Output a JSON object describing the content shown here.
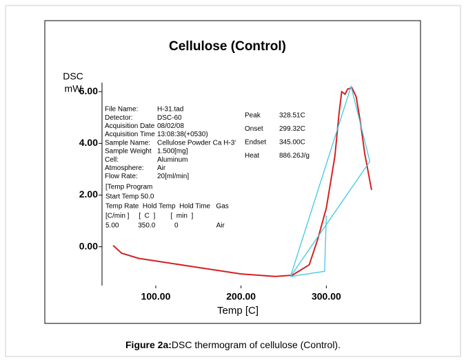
{
  "chart_data": {
    "type": "line",
    "title": "Cellulose (Control)",
    "ylabel": [
      "DSC",
      "mW"
    ],
    "xlabel": "Temp [C]",
    "xlim": [
      37,
      370
    ],
    "ylim": [
      -1.5,
      6.35
    ],
    "xticks": [
      {
        "value": 100,
        "label": "100.00"
      },
      {
        "value": 200,
        "label": "200.00"
      },
      {
        "value": 300,
        "label": "300.00"
      }
    ],
    "yticks": [
      {
        "value": 0,
        "label": "0.00"
      },
      {
        "value": 2,
        "label": "2.00"
      },
      {
        "value": 4,
        "label": "4.00"
      },
      {
        "value": 6,
        "label": "6.00"
      }
    ],
    "series": [
      {
        "color": "#d42020",
        "x": [
          50,
          60,
          80,
          100,
          150,
          200,
          240,
          260,
          280,
          290,
          300,
          310,
          315,
          318,
          322,
          325,
          330,
          335,
          340,
          345,
          353
        ],
        "values": [
          0.05,
          -0.25,
          -0.45,
          -0.55,
          -0.8,
          -1.05,
          -1.15,
          -1.1,
          -0.7,
          0.3,
          1.5,
          3.5,
          5.2,
          6.0,
          5.9,
          6.1,
          6.15,
          5.8,
          4.8,
          3.6,
          2.2
        ]
      },
      {
        "color": "#40c8e0",
        "x": [
          258,
          298,
          300
        ],
        "values": [
          -1.15,
          -0.95,
          1.2
        ]
      },
      {
        "color": "#40c8e0",
        "x": [
          258,
          329,
          351
        ],
        "values": [
          -1.15,
          6.2,
          3.3
        ]
      },
      {
        "color": "#40c8e0",
        "x": [
          258,
          351
        ],
        "values": [
          -1.15,
          3.3
        ]
      }
    ],
    "info": [
      [
        "File Name:",
        "H-31.tad"
      ],
      [
        "Detector:",
        "DSC-60"
      ],
      [
        "Acquisition Date",
        "08/02/08"
      ],
      [
        "Acquisition Time",
        "13:08:38(+0530)"
      ],
      [
        "Sample Name:",
        "Cellulose Powder Ca H-3'"
      ],
      [
        "Sample Weight",
        "1.500[mg]"
      ],
      [
        "Cell:",
        "Aluminum"
      ],
      [
        "Atmosphere:",
        "Air"
      ],
      [
        "Flow Rate:",
        "20[ml/min]"
      ]
    ],
    "results": [
      [
        "Peak",
        "328.51C"
      ],
      [
        "Onset",
        "299.32C"
      ],
      [
        "Endset",
        "345.00C"
      ],
      [
        "Heat",
        "886.26J/g"
      ]
    ],
    "temp_program": [
      "[Temp Program",
      "Start Temp 50.0",
      "Temp Rate  Hold Temp  Hold Time   Gas",
      "[C/min ]     [  C  ]        [  min  ]",
      "5.00          350.0          0                    Air"
    ],
    "caption": {
      "bold": "Figure 2a:",
      "text": "DSC thermogram of cellulose (Control)."
    }
  }
}
